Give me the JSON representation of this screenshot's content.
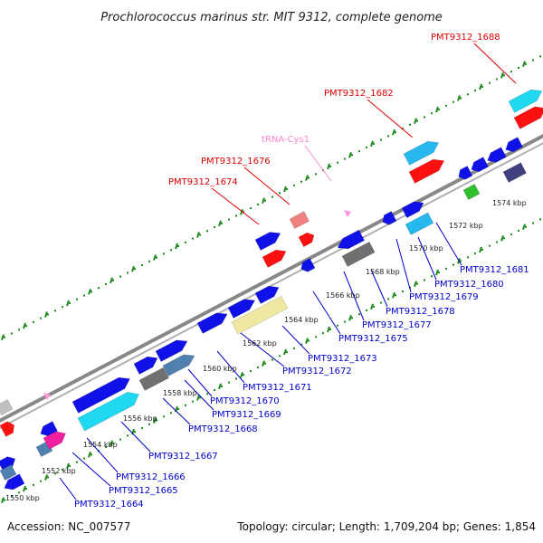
{
  "title": "Prochlorococcus marinus str. MIT 9312, complete genome",
  "accession": "Accession: NC_007577",
  "summary": "Topology: circular; Length: 1,709,204 bp; Genes: 1,854",
  "colors": {
    "cds": "#1010e8",
    "red_feature": "#ff1010",
    "cyan_feature": "#20d8f0",
    "lightblue_feature": "#28b8f0",
    "salmon_feature": "#f08080",
    "magenta_feature": "#f020a0",
    "gray_feature": "#707070",
    "khaki_feature": "#f0e8a0",
    "steel_feature": "#5080b0",
    "navy_feature": "#404080",
    "green_feature": "#30c030",
    "trna": "#ff99dd",
    "backbone": "#888888",
    "tick_green": "#1a8a1a",
    "label_blue": "#0000cc",
    "label_red": "#dd0000",
    "label_pink": "#ff88cc"
  },
  "kbp_labels": [
    "1550 kbp",
    "1552 kbp",
    "1554 kbp",
    "1556 kbp",
    "1558 kbp",
    "1560 kbp",
    "1562 kbp",
    "1564 kbp",
    "1566 kbp",
    "1568 kbp",
    "1570 kbp",
    "1572 kbp",
    "1574 kbp"
  ],
  "gene_labels": [
    {
      "text": "PMT9312_1664",
      "color": "blue"
    },
    {
      "text": "PMT9312_1665",
      "color": "blue"
    },
    {
      "text": "PMT9312_1666",
      "color": "blue"
    },
    {
      "text": "PMT9312_1667",
      "color": "blue"
    },
    {
      "text": "PMT9312_1668",
      "color": "blue"
    },
    {
      "text": "PMT9312_1669",
      "color": "blue"
    },
    {
      "text": "PMT9312_1670",
      "color": "blue"
    },
    {
      "text": "PMT9312_1671",
      "color": "blue"
    },
    {
      "text": "PMT9312_1672",
      "color": "blue"
    },
    {
      "text": "PMT9312_1673",
      "color": "blue"
    },
    {
      "text": "PMT9312_1675",
      "color": "blue"
    },
    {
      "text": "PMT9312_1677",
      "color": "blue"
    },
    {
      "text": "PMT9312_1678",
      "color": "blue"
    },
    {
      "text": "PMT9312_1679",
      "color": "blue"
    },
    {
      "text": "PMT9312_1680",
      "color": "blue"
    },
    {
      "text": "PMT9312_1681",
      "color": "blue"
    },
    {
      "text": "PMT9312_1674",
      "color": "red"
    },
    {
      "text": "PMT9312_1676",
      "color": "red"
    },
    {
      "text": "tRNA-Cys1",
      "color": "pink"
    },
    {
      "text": "PMT9312_1682",
      "color": "red"
    },
    {
      "text": "PMT9312_1688",
      "color": "red"
    }
  ]
}
